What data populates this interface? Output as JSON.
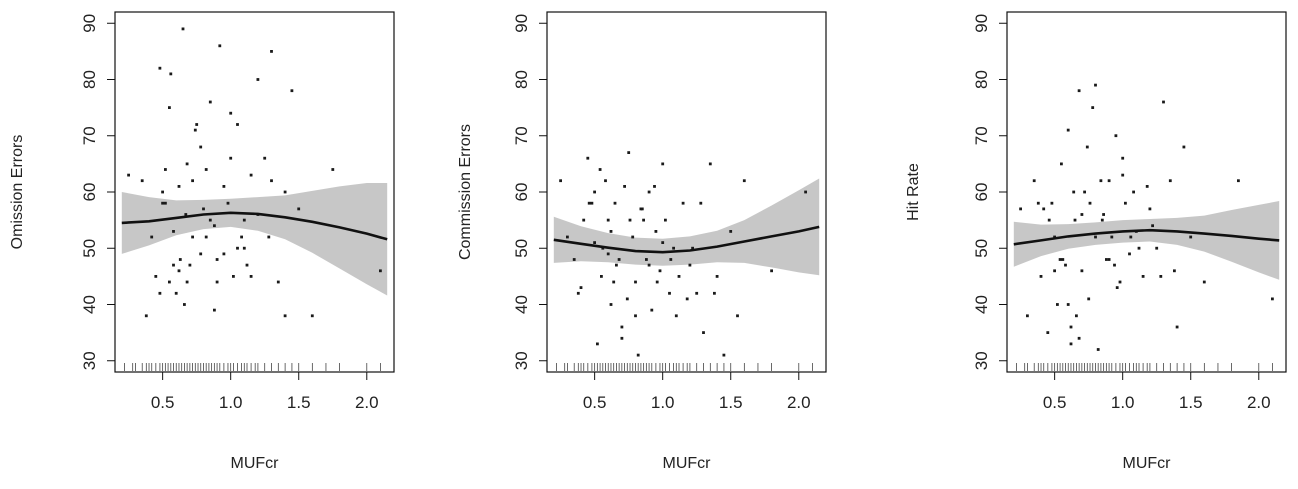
{
  "chart_data": [
    {
      "type": "scatter",
      "xlabel": "MUFcr",
      "ylabel": "Omission Errors",
      "xlim": [
        0.15,
        2.2
      ],
      "ylim": [
        28,
        92
      ],
      "xticks": [
        "0.5",
        "1.0",
        "1.5",
        "2.0"
      ],
      "yticks": [
        "30",
        "40",
        "50",
        "60",
        "70",
        "80",
        "90"
      ],
      "grid": false,
      "points": {
        "x": [
          0.25,
          0.38,
          0.45,
          0.48,
          0.5,
          0.52,
          0.55,
          0.55,
          0.58,
          0.6,
          0.62,
          0.63,
          0.65,
          0.67,
          0.68,
          0.7,
          0.72,
          0.75,
          0.78,
          0.8,
          0.82,
          0.85,
          0.88,
          0.9,
          0.92,
          0.95,
          0.98,
          1.0,
          1.02,
          1.05,
          1.08,
          1.1,
          1.12,
          1.15,
          1.2,
          1.25,
          1.28,
          1.3,
          1.35,
          1.4,
          1.45,
          1.5,
          1.6,
          1.75,
          2.1,
          0.42,
          0.58,
          0.72,
          0.68,
          0.85,
          1.05,
          1.2,
          0.5,
          0.62,
          0.78,
          0.95,
          1.15,
          0.35,
          0.9,
          1.3,
          0.66,
          0.74,
          0.82,
          0.56,
          1.0,
          1.1,
          0.48,
          0.52,
          0.88,
          1.4
        ],
        "y": [
          63,
          38,
          45,
          82,
          58,
          64,
          75,
          44,
          53,
          42,
          61,
          48,
          89,
          56,
          65,
          47,
          52,
          72,
          49,
          57,
          64,
          76,
          54,
          48,
          86,
          61,
          58,
          74,
          45,
          72,
          52,
          55,
          47,
          63,
          80,
          66,
          52,
          85,
          44,
          38,
          78,
          57,
          38,
          64,
          46,
          52,
          47,
          62,
          44,
          55,
          50,
          56,
          60,
          46,
          68,
          49,
          45,
          62,
          44,
          62,
          40,
          71,
          52,
          81,
          66,
          50,
          42,
          58,
          39,
          60
        ]
      },
      "smooth": {
        "x": [
          0.2,
          0.4,
          0.6,
          0.8,
          1.0,
          1.2,
          1.4,
          1.6,
          1.8,
          2.0,
          2.15
        ],
        "y": [
          54.5,
          54.8,
          55.4,
          56.0,
          56.3,
          56.1,
          55.5,
          54.7,
          53.7,
          52.6,
          51.6
        ],
        "lower": [
          49,
          50.5,
          52.3,
          53.4,
          53.8,
          53.1,
          51.6,
          49.2,
          46.4,
          43.6,
          41.6
        ],
        "upper": [
          60,
          59.1,
          58.5,
          58.6,
          58.8,
          59.1,
          59.4,
          60.2,
          61.0,
          61.6,
          61.6
        ]
      },
      "rug": [
        0.22,
        0.28,
        0.3,
        0.35,
        0.38,
        0.4,
        0.42,
        0.45,
        0.48,
        0.5,
        0.52,
        0.54,
        0.56,
        0.58,
        0.6,
        0.62,
        0.64,
        0.66,
        0.68,
        0.7,
        0.72,
        0.74,
        0.76,
        0.78,
        0.8,
        0.82,
        0.84,
        0.86,
        0.88,
        0.9,
        0.92,
        0.95,
        0.98,
        1.0,
        1.02,
        1.05,
        1.08,
        1.1,
        1.12,
        1.15,
        1.18,
        1.2,
        1.25,
        1.3,
        1.35,
        1.4,
        1.45,
        1.5,
        1.6,
        1.7,
        1.8,
        2.0,
        2.1
      ]
    },
    {
      "type": "scatter",
      "xlabel": "MUFcr",
      "ylabel": "Commission Errors",
      "xlim": [
        0.15,
        2.2
      ],
      "ylim": [
        28,
        92
      ],
      "xticks": [
        "0.5",
        "1.0",
        "1.5",
        "2.0"
      ],
      "yticks": [
        "30",
        "40",
        "50",
        "60",
        "70",
        "80",
        "90"
      ],
      "grid": false,
      "points": {
        "x": [
          0.25,
          0.3,
          0.35,
          0.4,
          0.45,
          0.48,
          0.5,
          0.52,
          0.55,
          0.58,
          0.6,
          0.62,
          0.65,
          0.68,
          0.7,
          0.72,
          0.75,
          0.78,
          0.8,
          0.82,
          0.85,
          0.88,
          0.9,
          0.92,
          0.95,
          0.98,
          1.0,
          1.02,
          1.05,
          1.08,
          1.1,
          1.15,
          1.2,
          1.25,
          1.3,
          1.35,
          1.4,
          1.45,
          1.5,
          1.55,
          1.6,
          1.8,
          2.05,
          0.42,
          0.56,
          0.66,
          0.74,
          0.86,
          0.96,
          1.06,
          1.18,
          0.5,
          0.62,
          0.7,
          0.84,
          0.94,
          1.12,
          1.28,
          0.38,
          0.6,
          0.8,
          1.0,
          0.54,
          0.76,
          0.9,
          1.22,
          1.38,
          0.46,
          0.64
        ],
        "y": [
          62,
          52,
          48,
          43,
          66,
          58,
          51,
          33,
          45,
          62,
          55,
          40,
          58,
          48,
          36,
          61,
          67,
          52,
          44,
          31,
          57,
          48,
          60,
          39,
          53,
          46,
          65,
          55,
          42,
          50,
          38,
          58,
          47,
          42,
          35,
          65,
          45,
          31,
          53,
          38,
          62,
          46,
          60,
          55,
          50,
          47,
          41,
          55,
          44,
          48,
          41,
          60,
          53,
          34,
          57,
          61,
          45,
          58,
          42,
          49,
          38,
          51,
          64,
          55,
          47,
          50,
          42,
          58,
          44
        ]
      },
      "smooth": {
        "x": [
          0.2,
          0.4,
          0.6,
          0.8,
          1.0,
          1.2,
          1.4,
          1.6,
          1.8,
          2.0,
          2.15
        ],
        "y": [
          51.5,
          50.8,
          50.1,
          49.5,
          49.3,
          49.6,
          50.3,
          51.2,
          52.1,
          53.0,
          53.8
        ],
        "lower": [
          47.4,
          47.7,
          47.5,
          47.1,
          46.9,
          47.1,
          47.5,
          47.4,
          46.6,
          45.7,
          45.2
        ],
        "upper": [
          55.6,
          53.9,
          52.7,
          51.9,
          51.7,
          52.1,
          53.1,
          55.0,
          57.6,
          60.3,
          62.4
        ]
      },
      "rug": [
        0.22,
        0.28,
        0.3,
        0.35,
        0.38,
        0.4,
        0.42,
        0.45,
        0.48,
        0.5,
        0.52,
        0.54,
        0.56,
        0.58,
        0.6,
        0.62,
        0.64,
        0.66,
        0.68,
        0.7,
        0.72,
        0.74,
        0.76,
        0.78,
        0.8,
        0.82,
        0.84,
        0.86,
        0.88,
        0.9,
        0.92,
        0.95,
        0.98,
        1.0,
        1.02,
        1.05,
        1.08,
        1.1,
        1.12,
        1.15,
        1.18,
        1.2,
        1.25,
        1.3,
        1.35,
        1.4,
        1.45,
        1.5,
        1.6,
        1.7,
        1.8,
        2.0,
        2.1
      ]
    },
    {
      "type": "scatter",
      "xlabel": "MUFcr",
      "ylabel": "Hit Rate",
      "xlim": [
        0.15,
        2.2
      ],
      "ylim": [
        28,
        92
      ],
      "xticks": [
        "0.5",
        "1.0",
        "1.5",
        "2.0"
      ],
      "yticks": [
        "30",
        "40",
        "50",
        "60",
        "70",
        "80",
        "90"
      ],
      "grid": false,
      "points": {
        "x": [
          0.25,
          0.3,
          0.35,
          0.4,
          0.45,
          0.48,
          0.5,
          0.52,
          0.55,
          0.58,
          0.6,
          0.62,
          0.65,
          0.68,
          0.7,
          0.72,
          0.75,
          0.78,
          0.8,
          0.82,
          0.85,
          0.88,
          0.9,
          0.92,
          0.95,
          0.98,
          1.0,
          1.02,
          1.05,
          1.08,
          1.1,
          1.15,
          1.2,
          1.25,
          1.3,
          1.35,
          1.4,
          1.45,
          1.5,
          1.6,
          1.85,
          2.1,
          0.42,
          0.56,
          0.66,
          0.74,
          0.86,
          0.96,
          1.06,
          1.18,
          0.5,
          0.62,
          0.7,
          0.84,
          0.94,
          1.12,
          1.28,
          0.38,
          0.6,
          0.8,
          1.0,
          0.54,
          0.76,
          0.9,
          1.22,
          1.38,
          0.46,
          0.64,
          0.68
        ],
        "y": [
          57,
          38,
          62,
          45,
          35,
          58,
          52,
          40,
          65,
          47,
          71,
          36,
          55,
          78,
          46,
          60,
          41,
          75,
          79,
          32,
          55,
          48,
          62,
          52,
          70,
          44,
          66,
          58,
          49,
          60,
          53,
          45,
          57,
          50,
          76,
          62,
          36,
          68,
          52,
          44,
          62,
          41,
          57,
          48,
          38,
          68,
          56,
          43,
          52,
          61,
          46,
          33,
          56,
          62,
          47,
          50,
          45,
          58,
          40,
          52,
          63,
          48,
          58,
          48,
          54,
          46,
          55,
          60,
          34
        ]
      },
      "smooth": {
        "x": [
          0.2,
          0.4,
          0.6,
          0.8,
          1.0,
          1.2,
          1.4,
          1.6,
          1.8,
          2.0,
          2.15
        ],
        "y": [
          50.7,
          51.4,
          52.1,
          52.6,
          53.0,
          53.2,
          53.0,
          52.6,
          52.2,
          51.7,
          51.4
        ],
        "lower": [
          46.7,
          48.6,
          49.9,
          50.6,
          51.0,
          51.2,
          50.6,
          49.4,
          47.6,
          45.7,
          44.4
        ],
        "upper": [
          54.7,
          54.2,
          54.3,
          54.6,
          55.0,
          55.2,
          55.4,
          55.8,
          56.8,
          57.7,
          58.4
        ]
      },
      "rug": [
        0.22,
        0.28,
        0.3,
        0.35,
        0.38,
        0.4,
        0.42,
        0.45,
        0.48,
        0.5,
        0.52,
        0.54,
        0.56,
        0.58,
        0.6,
        0.62,
        0.64,
        0.66,
        0.68,
        0.7,
        0.72,
        0.74,
        0.76,
        0.78,
        0.8,
        0.82,
        0.84,
        0.86,
        0.88,
        0.9,
        0.92,
        0.95,
        0.98,
        1.0,
        1.02,
        1.05,
        1.08,
        1.1,
        1.12,
        1.15,
        1.18,
        1.2,
        1.25,
        1.3,
        1.35,
        1.4,
        1.45,
        1.5,
        1.6,
        1.7,
        1.8,
        2.0,
        2.1
      ]
    }
  ],
  "colors": {
    "points": "#1a1a1a",
    "smooth_line": "#111111",
    "band": "#bdbdbd",
    "axis": "#111111"
  }
}
